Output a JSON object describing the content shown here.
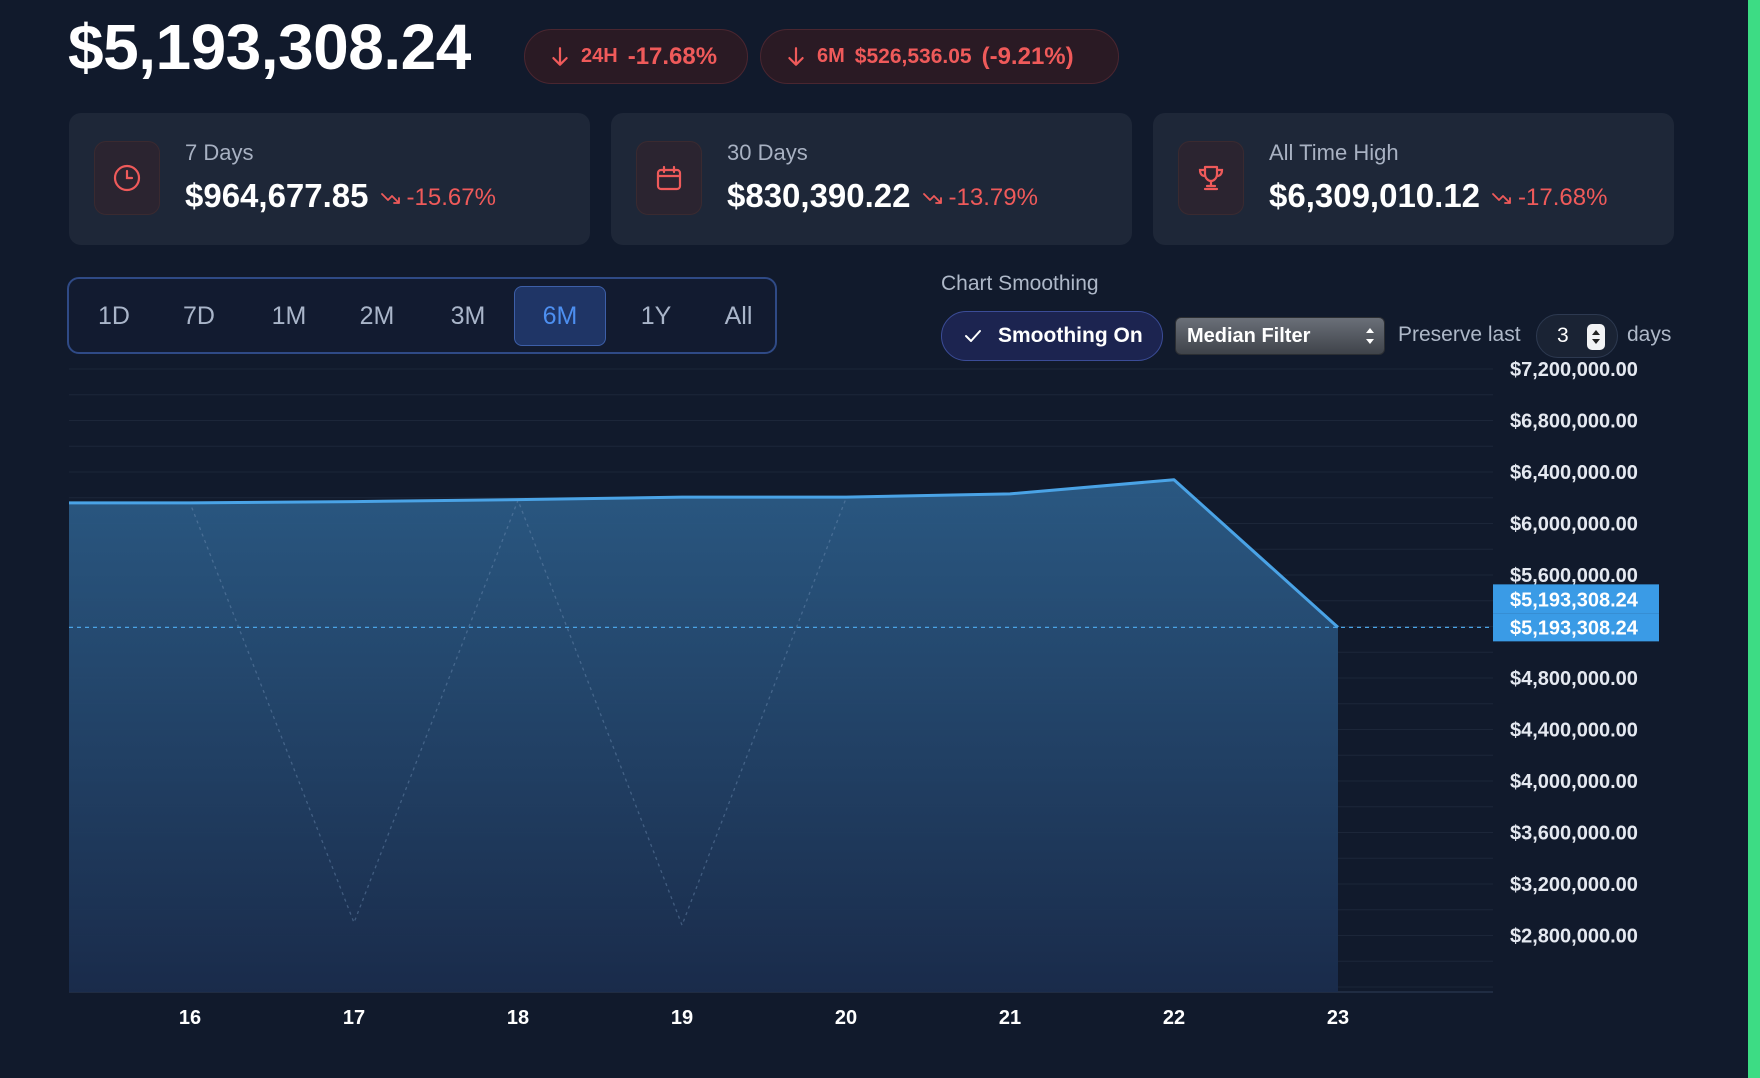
{
  "header": {
    "total_value": "$5,193,308.24",
    "pill_24h": {
      "tag": "24H",
      "change": "-17.68%"
    },
    "pill_6m": {
      "tag": "6M",
      "amount": "$526,536.05",
      "change": "(-9.21%)"
    }
  },
  "stats": {
    "seven_days": {
      "label": "7 Days",
      "value": "$964,677.85",
      "change": "-15.67%",
      "icon": "clock-icon"
    },
    "thirty_days": {
      "label": "30 Days",
      "value": "$830,390.22",
      "change": "-13.79%",
      "icon": "calendar-icon"
    },
    "all_time_high": {
      "label": "All Time High",
      "value": "$6,309,010.12",
      "change": "-17.68%",
      "icon": "trophy-icon"
    }
  },
  "ranges": [
    "1D",
    "7D",
    "1M",
    "2M",
    "3M",
    "6M",
    "1Y",
    "All"
  ],
  "active_range": "6M",
  "smoothing": {
    "title": "Chart Smoothing",
    "toggle_label": "Smoothing On",
    "method": "Median Filter",
    "preserve_label": "Preserve last",
    "preserve_days": "3",
    "days_label": "days"
  },
  "colors": {
    "negative": "#ef5a5a",
    "accent": "#4d8ff0",
    "line": "#4aa3e6",
    "tag_bg": "#3a9be6"
  },
  "chart_data": {
    "type": "area",
    "x": [
      "16",
      "17",
      "18",
      "19",
      "20",
      "21",
      "22",
      "23"
    ],
    "smoothed": [
      6160000,
      6160000,
      6170000,
      6185000,
      6205000,
      6205000,
      6230000,
      6340000,
      5193308.24
    ],
    "raw": [
      6160000,
      6160000,
      2900000,
      6180000,
      2880000,
      6195000
    ],
    "y_ticks": [
      "$7,200,000.00",
      "$6,800,000.00",
      "$6,400,000.00",
      "$6,000,000.00",
      "$5,600,000.00",
      "$4,800,000.00",
      "$4,400,000.00",
      "$4,000,000.00",
      "$3,600,000.00",
      "$3,200,000.00",
      "$2,800,000.00"
    ],
    "y_tick_values": [
      7200000,
      6800000,
      6400000,
      6000000,
      5600000,
      4800000,
      4400000,
      4000000,
      3600000,
      3200000,
      2800000
    ],
    "current_value": 5193308.24,
    "current_labels": [
      "$5,193,308.24",
      "$5,193,308.24"
    ],
    "grid": true
  }
}
